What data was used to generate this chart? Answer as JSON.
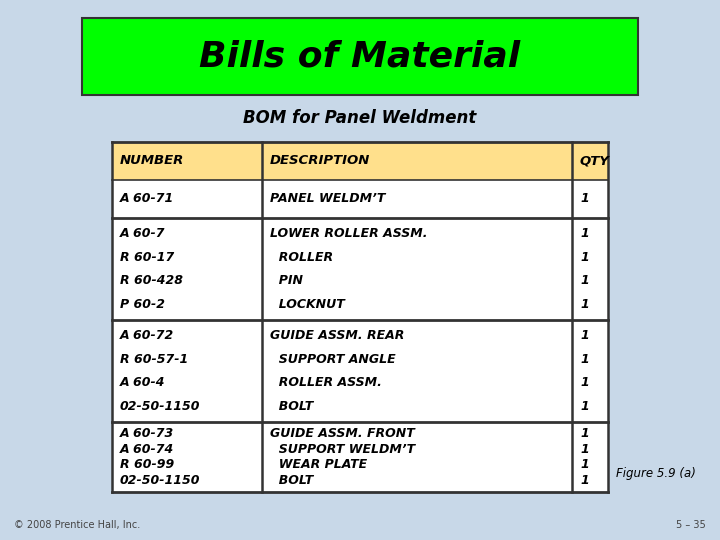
{
  "title": "Bills of Material",
  "subtitle": "BOM for Panel Weldment",
  "title_bg": "#00FF00",
  "page_bg": "#C8D8E8",
  "table_bg": "#FFFFFF",
  "header": [
    "NUMBER",
    "DESCRIPTION",
    "QTY"
  ],
  "header_bg": "#FFE08C",
  "rows": [
    [
      [
        "A 60-71"
      ],
      [
        "PANEL WELDM’T"
      ],
      [
        "1"
      ]
    ],
    [
      [
        "A 60-7",
        "R 60-17",
        "R 60-428",
        "P 60-2"
      ],
      [
        "LOWER ROLLER ASSM.",
        "  ROLLER",
        "  PIN",
        "  LOCKNUT"
      ],
      [
        "1",
        "1",
        "1",
        "1"
      ]
    ],
    [
      [
        "A 60-72",
        "R 60-57-1",
        "A 60-4",
        "02-50-1150"
      ],
      [
        "GUIDE ASSM. REAR",
        "  SUPPORT ANGLE",
        "  ROLLER ASSM.",
        "  BOLT"
      ],
      [
        "1",
        "1",
        "1",
        "1"
      ]
    ],
    [
      [
        "A 60-73",
        "A 60-74",
        "R 60-99",
        "02-50-1150"
      ],
      [
        "GUIDE ASSM. FRONT",
        "  SUPPORT WELDM’T",
        "  WEAR PLATE",
        "  BOLT"
      ],
      [
        "1",
        "1",
        "1",
        "1"
      ]
    ]
  ],
  "figure_label": "Figure 5.9 (a)",
  "copyright": "© 2008 Prentice Hall, Inc.",
  "slide_num": "5 – 35",
  "text_color": "#000000",
  "line_color": "#333333"
}
